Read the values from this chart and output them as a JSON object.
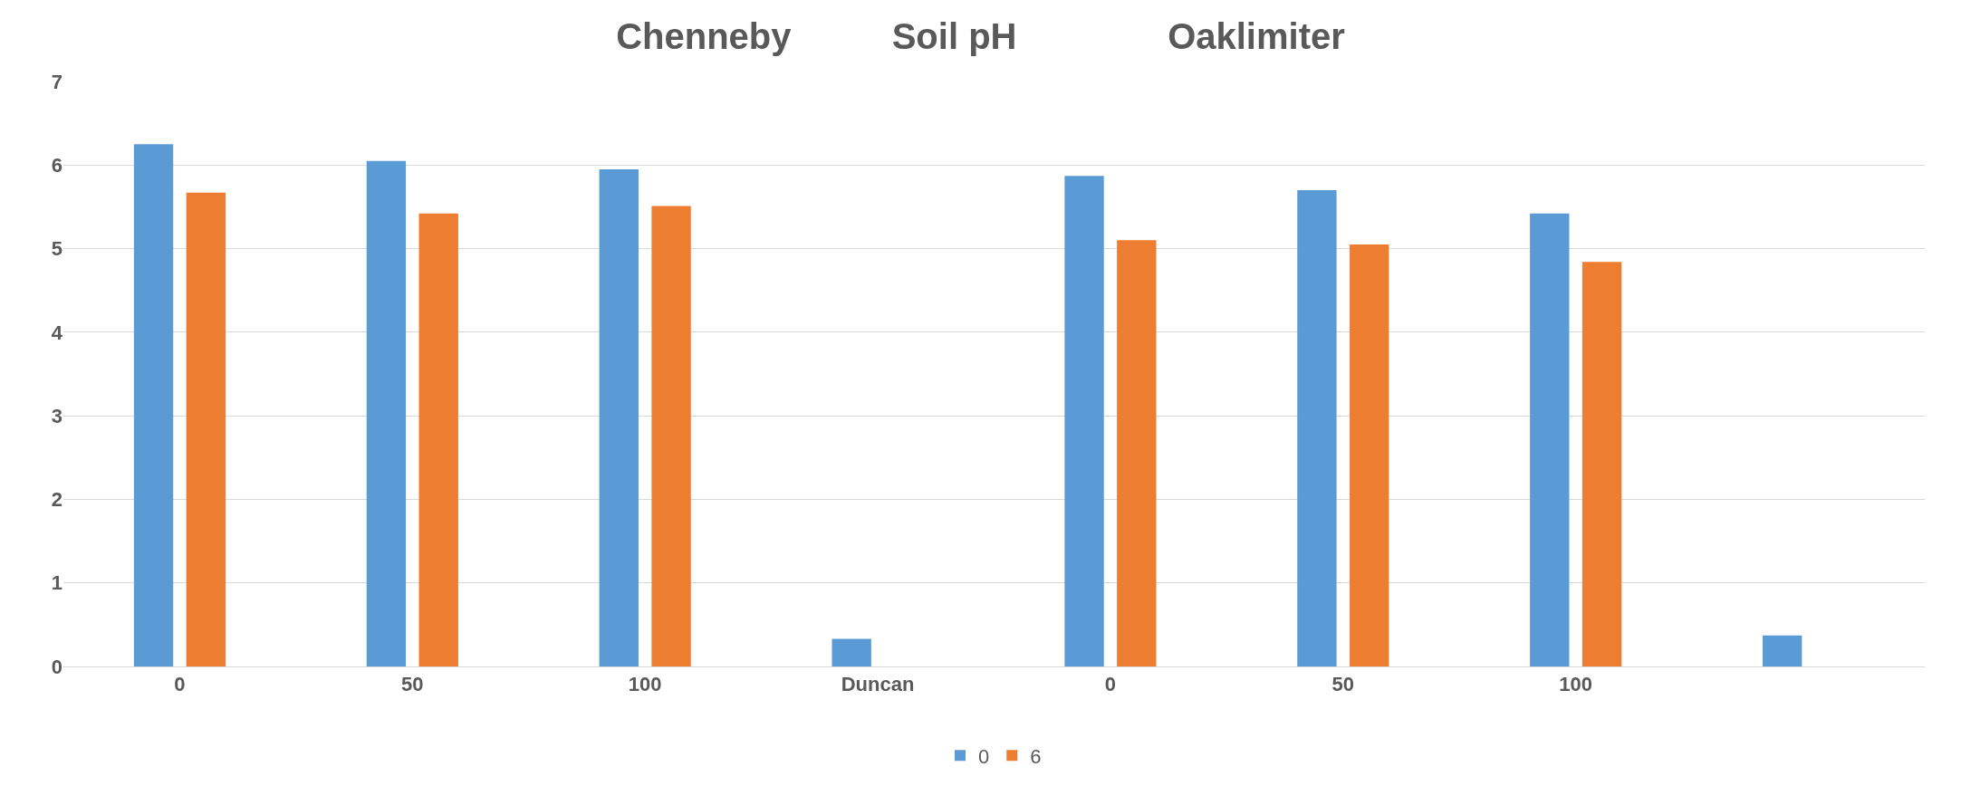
{
  "chart_data": {
    "type": "bar",
    "title": "Chenneby          Soil pH               Oaklimiter",
    "categories": [
      "0",
      "50",
      "100",
      "Duncan",
      "0",
      "50",
      "100",
      null
    ],
    "series": [
      {
        "name": "0",
        "color": "#5b9bd5",
        "values": [
          6.25,
          6.05,
          5.95,
          0.33,
          5.87,
          5.7,
          5.42,
          0.37
        ]
      },
      {
        "name": "6",
        "color": "#ed7d31",
        "values": [
          5.67,
          5.42,
          5.51,
          null,
          5.1,
          5.05,
          4.84,
          null
        ]
      }
    ],
    "ylim": [
      0,
      7
    ],
    "yticks": [
      0,
      1,
      2,
      3,
      4,
      5,
      6,
      7
    ],
    "grid": "y",
    "legend": "bottom"
  }
}
